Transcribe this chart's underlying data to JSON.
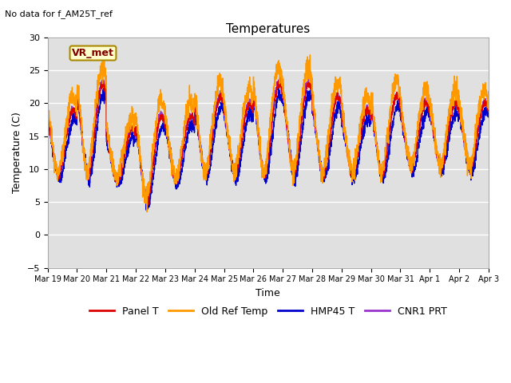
{
  "title": "Temperatures",
  "xlabel": "Time",
  "ylabel": "Temperature (C)",
  "annotation": "No data for f_AM25T_ref",
  "legend_label": "VR_met",
  "ylim": [
    -5,
    30
  ],
  "yticks": [
    -5,
    0,
    5,
    10,
    15,
    20,
    25,
    30
  ],
  "colors": {
    "panel_t": "#dd0000",
    "old_ref_temp": "#ff9900",
    "hmp45_t": "#0000cc",
    "cnr1_prt": "#9933cc"
  },
  "legend_entries": [
    "Panel T",
    "Old Ref Temp",
    "HMP45 T",
    "CNR1 PRT"
  ],
  "bg_color": "#e0e0e0",
  "grid_color": "white",
  "figsize": [
    6.4,
    4.8
  ],
  "dpi": 100
}
